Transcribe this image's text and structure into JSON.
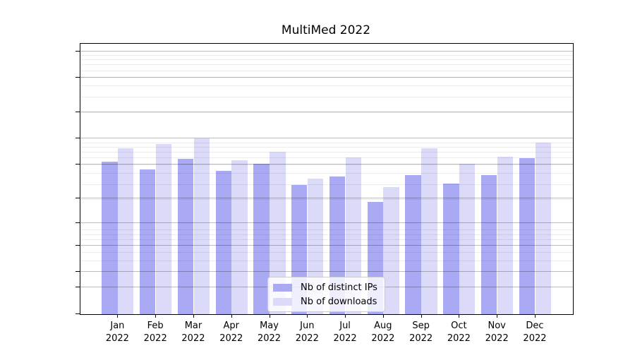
{
  "title": "MultiMed 2022",
  "chart_data": {
    "type": "bar",
    "title": "MultiMed 2022",
    "months": [
      "Jan",
      "Feb",
      "Mar",
      "Apr",
      "May",
      "Jun",
      "Jul",
      "Aug",
      "Sep",
      "Oct",
      "Nov",
      "Dec"
    ],
    "year": "2022",
    "series": [
      {
        "name": "Nb of distinct IPs",
        "color": "#a9a9f4",
        "values": [
          54,
          44,
          58,
          42,
          51,
          29,
          36,
          18,
          38,
          30,
          38,
          59
        ]
      },
      {
        "name": "Nb of downloads",
        "color": "#dbdbf9",
        "values": [
          77,
          86,
          100,
          56,
          70,
          34,
          61,
          27,
          77,
          51,
          62,
          90
        ]
      }
    ],
    "y_ticks": [
      0,
      1,
      2,
      5,
      10,
      20,
      50,
      100,
      200,
      500,
      1000
    ],
    "y_scale": "log10(1+v)",
    "ylim": [
      0,
      1230
    ],
    "xlabel": "",
    "ylabel": "",
    "legend_position": "lower center",
    "grid": "horizontal major and minor, drawn over bars"
  },
  "colors": {
    "background": "#ffffff",
    "axis_frame": "#000000",
    "grid_major": "rgba(0,0,0,0.26)",
    "grid_minor": "rgba(0,0,0,0.075)",
    "text": "#000000",
    "legend_border": "#cccccc",
    "legend_bg": "rgba(255,255,255,0.8)"
  }
}
